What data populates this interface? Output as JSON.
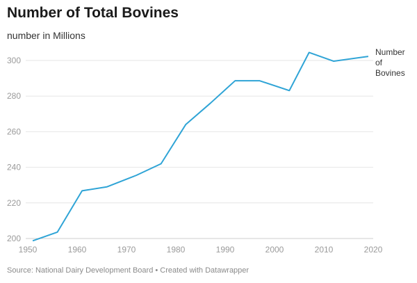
{
  "title": "Number of Total Bovines",
  "subtitle": "number in Millions",
  "source": "Source: National Dairy Development Board • Created with Datawrapper",
  "chart_data": {
    "type": "line",
    "title": "Number of Total Bovines",
    "subtitle": "number in Millions",
    "xlabel": "",
    "ylabel": "",
    "xlim": [
      1950,
      2020
    ],
    "ylim": [
      200,
      300
    ],
    "x_ticks": [
      "1950",
      "1960",
      "1970",
      "1980",
      "1990",
      "2000",
      "2010",
      "2020"
    ],
    "y_ticks": [
      "200",
      "220",
      "240",
      "260",
      "280",
      "300"
    ],
    "grid": "horizontal",
    "color": "#2fa4d6",
    "series": [
      {
        "name": "Number of Bovines",
        "x": [
          1951,
          1956,
          1961,
          1966,
          1972,
          1977,
          1982,
          1987,
          1992,
          1997,
          2003,
          2007,
          2012,
          2019
        ],
        "values": [
          198.7,
          203.6,
          226.8,
          229.0,
          235.5,
          242.0,
          264.0,
          276.0,
          288.6,
          288.6,
          283.1,
          304.5,
          299.6,
          302.3
        ]
      }
    ]
  }
}
